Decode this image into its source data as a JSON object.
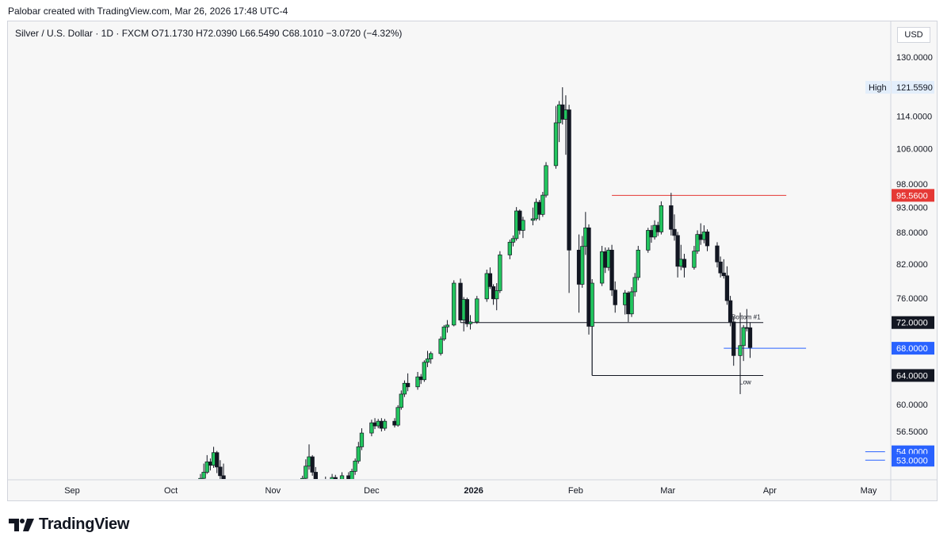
{
  "header": {
    "credit": "Palobar created with TradingView.com, Mar 26, 2026 17:48 UTC-4"
  },
  "legend": {
    "symbol": "Silver / U.S. Dollar · 1D · FXCM",
    "open_label": "O",
    "open": "71.1730",
    "high_label": "H",
    "high": "72.0390",
    "low_label": "L",
    "low": "66.5490",
    "close_label": "C",
    "close": "68.1010",
    "change": "−3.0720 (−4.32%)"
  },
  "currency": "USD",
  "brand": {
    "name": "TradingView",
    "logo_icon": "tradingview-logo-icon"
  },
  "colors": {
    "up": "#22c55e",
    "down": "#131722",
    "resistance": "#e53935",
    "support_blue": "#2962ff",
    "support_black": "#131722"
  },
  "chart_data": {
    "type": "candlestick",
    "symbol": "Silver / U.S. Dollar",
    "interval": "1D",
    "y_scale": "log",
    "ylim": [
      50.5,
      136
    ],
    "y_ticks": [
      "130.0000",
      "114.0000",
      "106.0000",
      "98.0000",
      "93.0000",
      "88.0000",
      "82.0000",
      "76.0000",
      "60.0000",
      "56.5000"
    ],
    "x_ticks": [
      {
        "label": "Sep",
        "date": "2025-09-01"
      },
      {
        "label": "Oct",
        "date": "2025-10-01"
      },
      {
        "label": "Nov",
        "date": "2025-11-01"
      },
      {
        "label": "Dec",
        "date": "2025-12-01"
      },
      {
        "label": "2026",
        "date": "2026-01-01",
        "bold": true
      },
      {
        "label": "Feb",
        "date": "2026-02-01"
      },
      {
        "label": "Mar",
        "date": "2026-03-01"
      },
      {
        "label": "Apr",
        "date": "2026-04-01"
      },
      {
        "label": "May",
        "date": "2026-05-01"
      }
    ],
    "price_labels": [
      {
        "text": "High",
        "value": "121.5590",
        "price": 121.559,
        "style": "high"
      },
      {
        "value": "95.5600",
        "price": 95.56,
        "style": "red"
      },
      {
        "value": "72.0000",
        "price": 72.0,
        "style": "dark"
      },
      {
        "value": "68.0000",
        "price": 68.0,
        "style": "blue"
      },
      {
        "value": "64.0000",
        "price": 64.0,
        "style": "dark"
      },
      {
        "value": "54.0000",
        "price": 54.0,
        "style": "blue"
      },
      {
        "value": "53.0000",
        "price": 53.0,
        "style": "blue"
      }
    ],
    "lines": [
      {
        "name": "resistance",
        "price": 95.56,
        "from": "2026-02-12",
        "to": "2026-04-06",
        "color": "red"
      },
      {
        "name": "bottom-1",
        "price": 72.0,
        "from": "2025-12-28",
        "to": "2026-03-30",
        "color": "dark",
        "label": "Bottom #1"
      },
      {
        "name": "low",
        "price": 64.0,
        "from": "2026-02-06",
        "to": "2026-03-30",
        "color": "dark",
        "label": "Low"
      },
      {
        "name": "support-68",
        "price": 68.0,
        "from": "2026-03-18",
        "to": "2026-04-12",
        "color": "blue"
      },
      {
        "name": "support-54",
        "price": 54.0,
        "from": "2026-04-30",
        "to": "2026-05-06",
        "color": "blue"
      },
      {
        "name": "support-53",
        "price": 53.0,
        "from": "2026-04-30",
        "to": "2026-05-06",
        "color": "blue"
      }
    ],
    "candles": [
      {
        "d": "2025-10-10",
        "o": 50.6,
        "h": 51.4,
        "l": 50.3,
        "c": 50.9
      },
      {
        "d": "2025-10-11",
        "o": 50.9,
        "h": 52.6,
        "l": 50.6,
        "c": 51.6
      },
      {
        "d": "2025-10-12",
        "o": 51.6,
        "h": 53.6,
        "l": 51.4,
        "c": 52.8
      },
      {
        "d": "2025-10-13",
        "o": 52.8,
        "h": 53.2,
        "l": 51.8,
        "c": 52.4
      },
      {
        "d": "2025-10-14",
        "o": 52.4,
        "h": 54.6,
        "l": 52.1,
        "c": 53.9
      },
      {
        "d": "2025-10-15",
        "o": 53.9,
        "h": 54.1,
        "l": 51.5,
        "c": 52.2
      },
      {
        "d": "2025-10-16",
        "o": 52.2,
        "h": 53.0,
        "l": 50.6,
        "c": 51.2
      },
      {
        "d": "2025-10-17",
        "o": 51.2,
        "h": 52.6,
        "l": 50.0,
        "c": 50.5
      },
      {
        "d": "2025-11-10",
        "o": 50.4,
        "h": 51.2,
        "l": 50.0,
        "c": 50.9
      },
      {
        "d": "2025-11-11",
        "o": 50.9,
        "h": 53.1,
        "l": 50.6,
        "c": 52.3
      },
      {
        "d": "2025-11-12",
        "o": 52.3,
        "h": 54.9,
        "l": 51.9,
        "c": 53.4
      },
      {
        "d": "2025-11-13",
        "o": 53.4,
        "h": 53.6,
        "l": 51.2,
        "c": 51.6
      },
      {
        "d": "2025-11-14",
        "o": 51.6,
        "h": 52.2,
        "l": 50.1,
        "c": 50.6
      },
      {
        "d": "2025-11-17",
        "o": 50.6,
        "h": 51.1,
        "l": 50.0,
        "c": 50.3
      },
      {
        "d": "2025-11-19",
        "o": 50.3,
        "h": 51.4,
        "l": 50.0,
        "c": 51.0
      },
      {
        "d": "2025-11-20",
        "o": 51.0,
        "h": 51.3,
        "l": 50.1,
        "c": 50.5
      },
      {
        "d": "2025-11-22",
        "o": 50.5,
        "h": 51.6,
        "l": 50.2,
        "c": 51.2
      },
      {
        "d": "2025-11-24",
        "o": 51.2,
        "h": 51.6,
        "l": 50.3,
        "c": 50.6
      },
      {
        "d": "2025-11-25",
        "o": 50.6,
        "h": 52.0,
        "l": 50.4,
        "c": 51.7
      },
      {
        "d": "2025-11-26",
        "o": 51.7,
        "h": 53.2,
        "l": 51.3,
        "c": 52.9
      },
      {
        "d": "2025-11-27",
        "o": 52.9,
        "h": 55.2,
        "l": 52.6,
        "c": 54.6
      },
      {
        "d": "2025-11-28",
        "o": 54.6,
        "h": 56.9,
        "l": 54.2,
        "c": 56.3
      },
      {
        "d": "2025-12-01",
        "o": 56.3,
        "h": 58.0,
        "l": 55.9,
        "c": 57.6
      },
      {
        "d": "2025-12-02",
        "o": 57.6,
        "h": 58.2,
        "l": 56.8,
        "c": 57.2
      },
      {
        "d": "2025-12-03",
        "o": 57.2,
        "h": 58.1,
        "l": 56.9,
        "c": 57.8
      },
      {
        "d": "2025-12-04",
        "o": 57.8,
        "h": 58.2,
        "l": 56.5,
        "c": 56.9
      },
      {
        "d": "2025-12-05",
        "o": 56.9,
        "h": 58.1,
        "l": 56.6,
        "c": 57.8
      },
      {
        "d": "2025-12-08",
        "o": 57.8,
        "h": 58.2,
        "l": 57.0,
        "c": 57.3
      },
      {
        "d": "2025-12-09",
        "o": 57.3,
        "h": 59.9,
        "l": 57.1,
        "c": 59.6
      },
      {
        "d": "2025-12-10",
        "o": 59.6,
        "h": 61.9,
        "l": 59.3,
        "c": 61.4
      },
      {
        "d": "2025-12-11",
        "o": 61.4,
        "h": 63.3,
        "l": 61.0,
        "c": 62.9
      },
      {
        "d": "2025-12-12",
        "o": 62.9,
        "h": 64.3,
        "l": 61.8,
        "c": 62.4
      },
      {
        "d": "2025-12-15",
        "o": 62.4,
        "h": 64.5,
        "l": 62.0,
        "c": 63.8
      },
      {
        "d": "2025-12-16",
        "o": 63.8,
        "h": 64.2,
        "l": 62.8,
        "c": 63.4
      },
      {
        "d": "2025-12-17",
        "o": 63.4,
        "h": 66.2,
        "l": 63.1,
        "c": 65.9
      },
      {
        "d": "2025-12-18",
        "o": 65.9,
        "h": 67.6,
        "l": 65.2,
        "c": 66.4
      },
      {
        "d": "2025-12-19",
        "o": 66.4,
        "h": 67.5,
        "l": 65.7,
        "c": 67.2
      },
      {
        "d": "2025-12-22",
        "o": 67.2,
        "h": 69.8,
        "l": 66.9,
        "c": 69.4
      },
      {
        "d": "2025-12-23",
        "o": 69.4,
        "h": 71.6,
        "l": 69.1,
        "c": 71.3
      },
      {
        "d": "2025-12-24",
        "o": 71.3,
        "h": 72.4,
        "l": 70.4,
        "c": 71.6
      },
      {
        "d": "2025-12-26",
        "o": 71.6,
        "h": 79.1,
        "l": 71.4,
        "c": 78.6
      },
      {
        "d": "2025-12-28",
        "o": 78.6,
        "h": 79.4,
        "l": 72.0,
        "c": 72.4
      },
      {
        "d": "2025-12-29",
        "o": 72.4,
        "h": 76.2,
        "l": 70.6,
        "c": 75.8
      },
      {
        "d": "2025-12-30",
        "o": 75.8,
        "h": 76.1,
        "l": 71.3,
        "c": 71.8
      },
      {
        "d": "2025-12-31",
        "o": 71.8,
        "h": 73.2,
        "l": 70.9,
        "c": 72.1
      },
      {
        "d": "2026-01-02",
        "o": 72.1,
        "h": 76.4,
        "l": 71.8,
        "c": 75.9
      },
      {
        "d": "2026-01-05",
        "o": 75.9,
        "h": 81.0,
        "l": 75.4,
        "c": 80.3
      },
      {
        "d": "2026-01-06",
        "o": 80.3,
        "h": 81.4,
        "l": 77.6,
        "c": 78.0
      },
      {
        "d": "2026-01-07",
        "o": 78.0,
        "h": 78.4,
        "l": 74.9,
        "c": 75.9
      },
      {
        "d": "2026-01-08",
        "o": 75.9,
        "h": 78.6,
        "l": 74.0,
        "c": 77.3
      },
      {
        "d": "2026-01-09",
        "o": 77.3,
        "h": 84.4,
        "l": 76.9,
        "c": 83.7
      },
      {
        "d": "2026-01-12",
        "o": 83.7,
        "h": 86.6,
        "l": 82.9,
        "c": 86.1
      },
      {
        "d": "2026-01-13",
        "o": 86.1,
        "h": 87.4,
        "l": 85.3,
        "c": 86.8
      },
      {
        "d": "2026-01-14",
        "o": 86.8,
        "h": 93.1,
        "l": 86.4,
        "c": 92.3
      },
      {
        "d": "2026-01-15",
        "o": 92.3,
        "h": 92.6,
        "l": 87.6,
        "c": 88.4
      },
      {
        "d": "2026-01-16",
        "o": 88.4,
        "h": 91.1,
        "l": 86.9,
        "c": 90.4
      },
      {
        "d": "2026-01-19",
        "o": 90.4,
        "h": 93.0,
        "l": 89.4,
        "c": 90.7
      },
      {
        "d": "2026-01-20",
        "o": 90.7,
        "h": 94.9,
        "l": 90.3,
        "c": 94.1
      },
      {
        "d": "2026-01-21",
        "o": 94.1,
        "h": 94.6,
        "l": 90.4,
        "c": 91.6
      },
      {
        "d": "2026-01-22",
        "o": 91.6,
        "h": 96.3,
        "l": 91.1,
        "c": 95.6
      },
      {
        "d": "2026-01-23",
        "o": 95.6,
        "h": 102.9,
        "l": 95.1,
        "c": 102.1
      },
      {
        "d": "2026-01-26",
        "o": 102.1,
        "h": 116.6,
        "l": 101.4,
        "c": 112.3
      },
      {
        "d": "2026-01-27",
        "o": 112.3,
        "h": 117.9,
        "l": 107.6,
        "c": 116.9
      },
      {
        "d": "2026-01-28",
        "o": 116.9,
        "h": 121.559,
        "l": 111.9,
        "c": 113.2
      },
      {
        "d": "2026-01-29",
        "o": 113.2,
        "h": 119.4,
        "l": 104.6,
        "c": 115.6
      },
      {
        "d": "2026-01-30",
        "o": 115.6,
        "h": 116.9,
        "l": 76.9,
        "c": 84.6
      },
      {
        "d": "2026-02-02",
        "o": 84.6,
        "h": 87.6,
        "l": 73.6,
        "c": 78.4
      },
      {
        "d": "2026-02-03",
        "o": 78.4,
        "h": 87.3,
        "l": 77.8,
        "c": 85.3
      },
      {
        "d": "2026-02-04",
        "o": 85.3,
        "h": 92.1,
        "l": 83.7,
        "c": 88.9
      },
      {
        "d": "2026-02-05",
        "o": 88.9,
        "h": 89.6,
        "l": 70.1,
        "c": 71.4
      },
      {
        "d": "2026-02-06",
        "o": 71.4,
        "h": 79.3,
        "l": 64.0,
        "c": 78.6
      },
      {
        "d": "2026-02-09",
        "o": 78.6,
        "h": 85.4,
        "l": 78.1,
        "c": 84.3
      },
      {
        "d": "2026-02-10",
        "o": 84.3,
        "h": 85.1,
        "l": 80.4,
        "c": 81.4
      },
      {
        "d": "2026-02-11",
        "o": 81.4,
        "h": 85.1,
        "l": 80.8,
        "c": 84.6
      },
      {
        "d": "2026-02-12",
        "o": 84.6,
        "h": 85.6,
        "l": 76.4,
        "c": 77.4
      },
      {
        "d": "2026-02-13",
        "o": 77.4,
        "h": 78.9,
        "l": 73.6,
        "c": 74.9
      },
      {
        "d": "2026-02-16",
        "o": 74.9,
        "h": 77.4,
        "l": 73.3,
        "c": 76.9
      },
      {
        "d": "2026-02-17",
        "o": 76.9,
        "h": 77.2,
        "l": 72.1,
        "c": 73.4
      },
      {
        "d": "2026-02-18",
        "o": 73.4,
        "h": 77.9,
        "l": 72.9,
        "c": 77.1
      },
      {
        "d": "2026-02-19",
        "o": 77.1,
        "h": 80.4,
        "l": 76.3,
        "c": 79.6
      },
      {
        "d": "2026-02-20",
        "o": 79.6,
        "h": 85.4,
        "l": 79.1,
        "c": 84.6
      },
      {
        "d": "2026-02-23",
        "o": 84.6,
        "h": 88.9,
        "l": 84.1,
        "c": 88.4
      },
      {
        "d": "2026-02-24",
        "o": 88.4,
        "h": 89.4,
        "l": 86.0,
        "c": 87.1
      },
      {
        "d": "2026-02-25",
        "o": 87.1,
        "h": 90.4,
        "l": 86.6,
        "c": 89.4
      },
      {
        "d": "2026-02-26",
        "o": 89.4,
        "h": 90.1,
        "l": 87.3,
        "c": 88.1
      },
      {
        "d": "2026-02-27",
        "o": 88.1,
        "h": 94.3,
        "l": 87.6,
        "c": 93.4
      },
      {
        "d": "2026-03-02",
        "o": 93.4,
        "h": 96.1,
        "l": 87.4,
        "c": 88.6
      },
      {
        "d": "2026-03-03",
        "o": 88.6,
        "h": 91.6,
        "l": 86.4,
        "c": 87.4
      },
      {
        "d": "2026-03-04",
        "o": 87.4,
        "h": 88.1,
        "l": 79.6,
        "c": 81.6
      },
      {
        "d": "2026-03-05",
        "o": 81.6,
        "h": 85.6,
        "l": 80.9,
        "c": 82.9
      },
      {
        "d": "2026-03-06",
        "o": 82.9,
        "h": 83.9,
        "l": 79.6,
        "c": 81.4
      },
      {
        "d": "2026-03-09",
        "o": 81.4,
        "h": 85.4,
        "l": 81.0,
        "c": 84.4
      },
      {
        "d": "2026-03-10",
        "o": 84.4,
        "h": 88.4,
        "l": 83.9,
        "c": 87.6
      },
      {
        "d": "2026-03-11",
        "o": 87.6,
        "h": 89.8,
        "l": 85.6,
        "c": 86.6
      },
      {
        "d": "2026-03-12",
        "o": 86.6,
        "h": 89.4,
        "l": 85.9,
        "c": 88.1
      },
      {
        "d": "2026-03-13",
        "o": 88.1,
        "h": 88.6,
        "l": 84.4,
        "c": 85.4
      },
      {
        "d": "2026-03-16",
        "o": 85.4,
        "h": 86.1,
        "l": 81.4,
        "c": 82.4
      },
      {
        "d": "2026-03-17",
        "o": 82.4,
        "h": 83.4,
        "l": 79.6,
        "c": 80.4
      },
      {
        "d": "2026-03-18",
        "o": 80.4,
        "h": 82.9,
        "l": 79.4,
        "c": 79.9
      },
      {
        "d": "2026-03-19",
        "o": 79.9,
        "h": 81.6,
        "l": 74.9,
        "c": 75.6
      },
      {
        "d": "2026-03-20",
        "o": 75.6,
        "h": 76.4,
        "l": 71.4,
        "c": 72.1
      },
      {
        "d": "2026-03-21",
        "o": 72.1,
        "h": 72.9,
        "l": 65.4,
        "c": 66.9
      },
      {
        "d": "2026-03-23",
        "o": 66.9,
        "h": 73.6,
        "l": 61.4,
        "c": 68.4
      },
      {
        "d": "2026-03-24",
        "o": 68.4,
        "h": 71.6,
        "l": 66.1,
        "c": 71.2
      },
      {
        "d": "2026-03-25",
        "o": 71.2,
        "h": 74.2,
        "l": 70.6,
        "c": 71.173
      },
      {
        "d": "2026-03-26",
        "o": 71.173,
        "h": 72.039,
        "l": 66.549,
        "c": 68.101
      }
    ]
  }
}
